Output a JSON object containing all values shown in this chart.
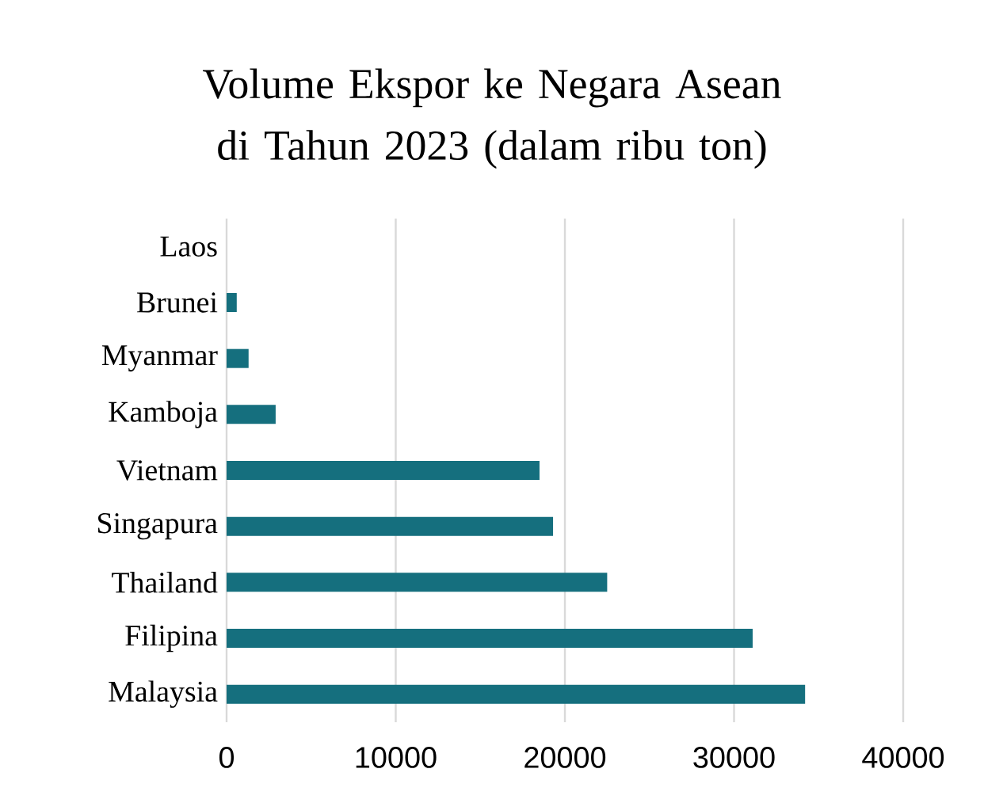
{
  "chart_data": {
    "type": "bar",
    "orientation": "horizontal",
    "title": "Volume Ekspor ke Negara Asean di Tahun 2023 (dalam ribu ton)",
    "categories": [
      "Laos",
      "Brunei",
      "Myanmar",
      "Kamboja",
      "Vietnam",
      "Singapura",
      "Thailand",
      "Filipina",
      "Malaysia"
    ],
    "values": [
      0,
      600,
      1300,
      2900,
      18500,
      19300,
      22500,
      31100,
      34200
    ],
    "color": "#156f7e",
    "xlim": [
      0,
      40000
    ],
    "xticks": [
      0,
      10000,
      20000,
      30000,
      40000
    ],
    "grid": "x"
  }
}
